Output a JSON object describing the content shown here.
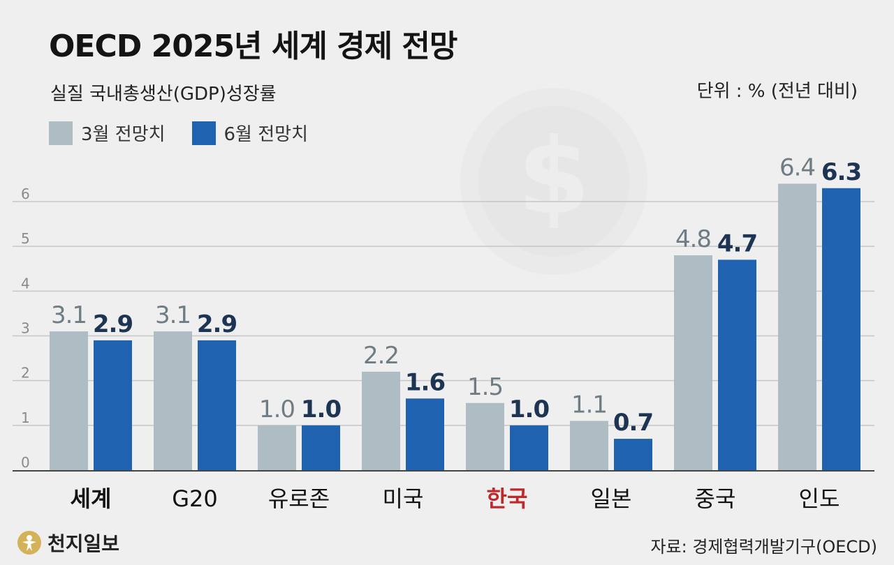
{
  "title": "OECD 2025년 세계 경제 전망",
  "subtitle": "실질 국내총생산(GDP)성장률",
  "unit": "단위 : % (전년 대비)",
  "legend": [
    {
      "label": "3월 전망치",
      "color": "#aebcc4"
    },
    {
      "label": "6월 전망치",
      "color": "#1f62b0"
    }
  ],
  "colors": {
    "march_bar": "#aebcc4",
    "june_bar": "#1f62b0",
    "march_label": "#6f7c84",
    "june_label": "#1d3553",
    "highlight_category": "#c0282a",
    "category": "#111111",
    "grid": "#c6c6c6",
    "axis_text": "#8a8a8a"
  },
  "chart_data": {
    "type": "bar",
    "title": "OECD 2025년 세계 경제 전망",
    "subtitle": "실질 국내총생산(GDP)성장률",
    "xlabel": "",
    "ylabel": "단위 : % (전년 대비)",
    "categories": [
      "세계",
      "G20",
      "유로존",
      "미국",
      "한국",
      "일본",
      "중국",
      "인도"
    ],
    "highlight": "한국",
    "bold_categories": [
      "세계"
    ],
    "series": [
      {
        "name": "3월 전망치",
        "values": [
          3.1,
          3.1,
          1.0,
          2.2,
          1.5,
          1.1,
          4.8,
          6.4
        ],
        "labels": [
          "3.1",
          "3.1",
          "1.0",
          "2.2",
          "1.5",
          "1.1",
          "4.8",
          "6.4"
        ]
      },
      {
        "name": "6월 전망치",
        "values": [
          2.9,
          2.9,
          1.0,
          1.6,
          1.0,
          0.7,
          4.7,
          6.3
        ],
        "labels": [
          "2.9",
          "2.9",
          "1.0",
          "1.6",
          "1.0",
          "0.7",
          "4.7",
          "6.3"
        ]
      }
    ],
    "yticks": [
      0,
      1,
      2,
      3,
      4,
      5,
      6
    ],
    "ylim": [
      0,
      6
    ],
    "grid": true
  },
  "footer": {
    "logo": "천지일보",
    "source": "자료: 경제협력개발기구(OECD)"
  }
}
